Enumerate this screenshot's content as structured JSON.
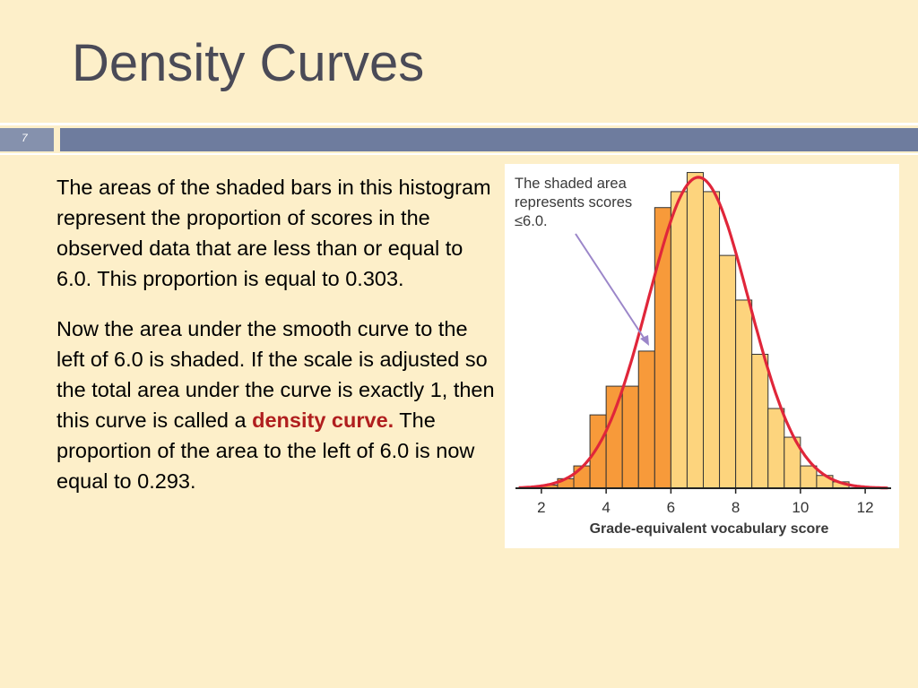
{
  "slide": {
    "title": "Density Curves",
    "number": "7"
  },
  "body": {
    "paragraph1": "The areas of the shaded bars in this histogram represent the proportion of scores in the observed data that are less than or equal to 6.0.  This proportion is equal to 0.303.",
    "paragraph2_before": "Now the area under the smooth curve to the left of 6.0 is shaded. If the scale is adjusted so the total area under the curve is exactly 1, then this curve is called a ",
    "paragraph2_emphasis": "density curve.",
    "paragraph2_after": " The proportion of the area to the left of 6.0 is now equal to 0.293."
  },
  "colors": {
    "shaded_bar": "#f79a3a",
    "unshaded_bar": "#fdd47d",
    "curve": "#e0263a",
    "arrow": "#9b86c9",
    "emphasis": "#b01e1e"
  },
  "chart_data": {
    "type": "bar",
    "annotation": [
      "The shaded area",
      "represents scores",
      "≤6.0."
    ],
    "xlabel": "Grade-equivalent vocabulary score",
    "xticks": [
      2,
      4,
      6,
      8,
      10,
      12
    ],
    "xlim": [
      1.2,
      12.8
    ],
    "ylim": [
      0,
      1
    ],
    "bin_width": 0.5,
    "shaded_through": 6.0,
    "bins": [
      {
        "start": 2.0,
        "value": 0.01
      },
      {
        "start": 2.5,
        "value": 0.03
      },
      {
        "start": 3.0,
        "value": 0.07
      },
      {
        "start": 3.5,
        "value": 0.23
      },
      {
        "start": 4.0,
        "value": 0.32
      },
      {
        "start": 4.5,
        "value": 0.32
      },
      {
        "start": 5.0,
        "value": 0.43
      },
      {
        "start": 5.5,
        "value": 0.88
      },
      {
        "start": 6.0,
        "value": 0.93
      },
      {
        "start": 6.5,
        "value": 0.99
      },
      {
        "start": 7.0,
        "value": 0.93
      },
      {
        "start": 7.5,
        "value": 0.73
      },
      {
        "start": 8.0,
        "value": 0.59
      },
      {
        "start": 8.5,
        "value": 0.42
      },
      {
        "start": 9.0,
        "value": 0.25
      },
      {
        "start": 9.5,
        "value": 0.16
      },
      {
        "start": 10.0,
        "value": 0.07
      },
      {
        "start": 10.5,
        "value": 0.04
      },
      {
        "start": 11.0,
        "value": 0.02
      }
    ],
    "curve": {
      "mean": 6.85,
      "sd": 1.55,
      "peak": 0.975
    }
  }
}
